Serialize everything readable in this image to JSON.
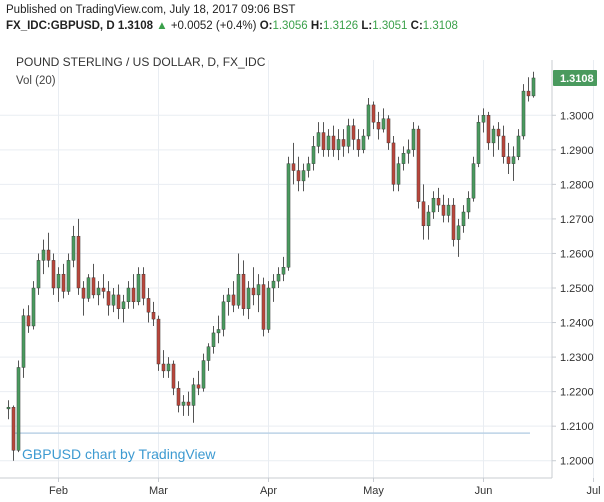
{
  "header": {
    "published": "Published on TradingView.com, July 18, 2017 09:06 BST",
    "symbol": "FX_IDC:GBPUSD, D",
    "last": "1.3108",
    "change": "+0.0052 (+0.4%)",
    "o_label": "O:",
    "o_value": "1.3056",
    "h_label": "H:",
    "h_value": "1.3126",
    "l_label": "L:",
    "l_value": "1.3051",
    "c_label": "C:",
    "c_value": "1.3108"
  },
  "chart_data": {
    "type": "candlestick",
    "title": "POUND STERLING / US DOLLAR, D, FX_IDC",
    "volume_label": "Vol (20)",
    "credit": "GBPUSD chart by TradingView",
    "last_price_label": "1.3108",
    "y_axis": {
      "min": 1.195,
      "max": 1.316,
      "ticks": [
        "1.3000",
        "1.2900",
        "1.2800",
        "1.2700",
        "1.2600",
        "1.2500",
        "1.2400",
        "1.2300",
        "1.2200",
        "1.2100",
        "1.2000"
      ]
    },
    "x_axis": {
      "months": [
        "Feb",
        "Mar",
        "Apr",
        "May",
        "Jun",
        "Jul"
      ],
      "month_start_index": [
        10,
        30,
        52,
        73,
        95,
        117
      ]
    },
    "volume_level": 1.208,
    "colors": {
      "up": "#4a9a5e",
      "down": "#b8463c",
      "wick": "#555555",
      "grid": "#e9edf2",
      "axis": "#c8ccd2",
      "last_label_bg": "#4a9a5e",
      "volume_line": "#bcd2e6"
    },
    "candles": [
      [
        1.215,
        1.2175,
        1.212,
        1.2155
      ],
      [
        1.2155,
        1.216,
        1.2,
        1.203
      ],
      [
        1.203,
        1.229,
        1.2025,
        1.227
      ],
      [
        1.227,
        1.244,
        1.224,
        1.242
      ],
      [
        1.242,
        1.245,
        1.237,
        1.239
      ],
      [
        1.239,
        1.252,
        1.238,
        1.25
      ],
      [
        1.25,
        1.26,
        1.248,
        1.258
      ],
      [
        1.258,
        1.264,
        1.254,
        1.261
      ],
      [
        1.261,
        1.266,
        1.256,
        1.258
      ],
      [
        1.258,
        1.26,
        1.248,
        1.25
      ],
      [
        1.25,
        1.256,
        1.246,
        1.254
      ],
      [
        1.254,
        1.257,
        1.247,
        1.249
      ],
      [
        1.249,
        1.26,
        1.248,
        1.258
      ],
      [
        1.258,
        1.268,
        1.256,
        1.265
      ],
      [
        1.265,
        1.27,
        1.248,
        1.25
      ],
      [
        1.25,
        1.252,
        1.242,
        1.247
      ],
      [
        1.247,
        1.254,
        1.246,
        1.253
      ],
      [
        1.253,
        1.257,
        1.247,
        1.248
      ],
      [
        1.248,
        1.252,
        1.245,
        1.25
      ],
      [
        1.25,
        1.254,
        1.247,
        1.249
      ],
      [
        1.249,
        1.252,
        1.242,
        1.245
      ],
      [
        1.245,
        1.25,
        1.243,
        1.248
      ],
      [
        1.248,
        1.251,
        1.241,
        1.244
      ],
      [
        1.244,
        1.248,
        1.24,
        1.246
      ],
      [
        1.246,
        1.252,
        1.244,
        1.25
      ],
      [
        1.25,
        1.254,
        1.244,
        1.246
      ],
      [
        1.246,
        1.256,
        1.245,
        1.254
      ],
      [
        1.254,
        1.256,
        1.245,
        1.247
      ],
      [
        1.247,
        1.25,
        1.24,
        1.243
      ],
      [
        1.243,
        1.246,
        1.239,
        1.241
      ],
      [
        1.241,
        1.242,
        1.226,
        1.228
      ],
      [
        1.228,
        1.232,
        1.224,
        1.226
      ],
      [
        1.226,
        1.23,
        1.224,
        1.228
      ],
      [
        1.228,
        1.229,
        1.219,
        1.221
      ],
      [
        1.221,
        1.223,
        1.214,
        1.216
      ],
      [
        1.216,
        1.219,
        1.213,
        1.217
      ],
      [
        1.217,
        1.22,
        1.213,
        1.216
      ],
      [
        1.216,
        1.224,
        1.211,
        1.222
      ],
      [
        1.222,
        1.226,
        1.219,
        1.221
      ],
      [
        1.221,
        1.231,
        1.22,
        1.229
      ],
      [
        1.229,
        1.234,
        1.226,
        1.233
      ],
      [
        1.233,
        1.239,
        1.231,
        1.237
      ],
      [
        1.237,
        1.242,
        1.234,
        1.238
      ],
      [
        1.238,
        1.248,
        1.236,
        1.246
      ],
      [
        1.246,
        1.25,
        1.242,
        1.248
      ],
      [
        1.248,
        1.252,
        1.243,
        1.245
      ],
      [
        1.245,
        1.26,
        1.244,
        1.254
      ],
      [
        1.254,
        1.258,
        1.242,
        1.244
      ],
      [
        1.244,
        1.252,
        1.241,
        1.25
      ],
      [
        1.25,
        1.256,
        1.245,
        1.248
      ],
      [
        1.248,
        1.254,
        1.243,
        1.251
      ],
      [
        1.251,
        1.253,
        1.236,
        1.238
      ],
      [
        1.238,
        1.252,
        1.237,
        1.25
      ],
      [
        1.25,
        1.254,
        1.246,
        1.252
      ],
      [
        1.252,
        1.256,
        1.25,
        1.254
      ],
      [
        1.254,
        1.259,
        1.252,
        1.256
      ],
      [
        1.256,
        1.288,
        1.255,
        1.286
      ],
      [
        1.286,
        1.292,
        1.28,
        1.284
      ],
      [
        1.284,
        1.288,
        1.278,
        1.281
      ],
      [
        1.281,
        1.286,
        1.278,
        1.284
      ],
      [
        1.284,
        1.288,
        1.282,
        1.286
      ],
      [
        1.286,
        1.294,
        1.284,
        1.291
      ],
      [
        1.291,
        1.298,
        1.289,
        1.295
      ],
      [
        1.295,
        1.298,
        1.288,
        1.29
      ],
      [
        1.29,
        1.296,
        1.288,
        1.294
      ],
      [
        1.294,
        1.297,
        1.288,
        1.29
      ],
      [
        1.29,
        1.296,
        1.287,
        1.293
      ],
      [
        1.293,
        1.296,
        1.288,
        1.291
      ],
      [
        1.291,
        1.299,
        1.289,
        1.297
      ],
      [
        1.297,
        1.299,
        1.29,
        1.293
      ],
      [
        1.293,
        1.296,
        1.288,
        1.29
      ],
      [
        1.29,
        1.296,
        1.289,
        1.294
      ],
      [
        1.294,
        1.305,
        1.293,
        1.303
      ],
      [
        1.303,
        1.304,
        1.296,
        1.298
      ],
      [
        1.298,
        1.301,
        1.293,
        1.296
      ],
      [
        1.296,
        1.302,
        1.295,
        1.299
      ],
      [
        1.299,
        1.3,
        1.29,
        1.292
      ],
      [
        1.292,
        1.294,
        1.278,
        1.28
      ],
      [
        1.28,
        1.288,
        1.278,
        1.286
      ],
      [
        1.286,
        1.291,
        1.284,
        1.289
      ],
      [
        1.289,
        1.293,
        1.286,
        1.29
      ],
      [
        1.29,
        1.298,
        1.288,
        1.296
      ],
      [
        1.296,
        1.297,
        1.273,
        1.275
      ],
      [
        1.275,
        1.28,
        1.264,
        1.268
      ],
      [
        1.268,
        1.274,
        1.264,
        1.272
      ],
      [
        1.272,
        1.278,
        1.27,
        1.276
      ],
      [
        1.276,
        1.279,
        1.272,
        1.274
      ],
      [
        1.274,
        1.277,
        1.269,
        1.271
      ],
      [
        1.271,
        1.276,
        1.269,
        1.274
      ],
      [
        1.274,
        1.276,
        1.262,
        1.264
      ],
      [
        1.264,
        1.27,
        1.259,
        1.268
      ],
      [
        1.268,
        1.274,
        1.266,
        1.272
      ],
      [
        1.272,
        1.278,
        1.27,
        1.276
      ],
      [
        1.276,
        1.288,
        1.275,
        1.286
      ],
      [
        1.286,
        1.3,
        1.285,
        1.298
      ],
      [
        1.298,
        1.302,
        1.295,
        1.3
      ],
      [
        1.3,
        1.301,
        1.29,
        1.292
      ],
      [
        1.292,
        1.297,
        1.288,
        1.296
      ],
      [
        1.296,
        1.298,
        1.29,
        1.294
      ],
      [
        1.294,
        1.297,
        1.286,
        1.288
      ],
      [
        1.288,
        1.292,
        1.283,
        1.286
      ],
      [
        1.286,
        1.291,
        1.281,
        1.288
      ],
      [
        1.288,
        1.296,
        1.287,
        1.294
      ],
      [
        1.294,
        1.309,
        1.293,
        1.307
      ],
      [
        1.307,
        1.311,
        1.304,
        1.3056
      ],
      [
        1.3056,
        1.3126,
        1.3051,
        1.3108
      ]
    ]
  }
}
